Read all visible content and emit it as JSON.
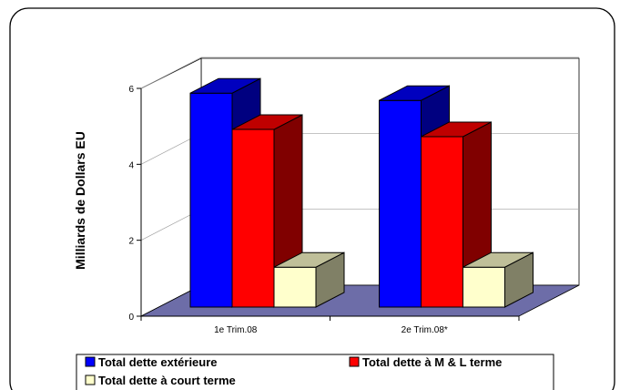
{
  "chart_data": {
    "type": "bar",
    "categories": [
      "1e Trim.08",
      "2e Trim.08*"
    ],
    "series": [
      {
        "name": "Total dette extérieure",
        "values": [
          5.9,
          5.7
        ],
        "color": "#0000FF"
      },
      {
        "name": "Total dette à M & L terme",
        "values": [
          4.9,
          4.7
        ],
        "color": "#FF0000"
      },
      {
        "name": "Total dette à court  terme",
        "values": [
          1.1,
          1.1
        ],
        "color": "#FFFFCC"
      }
    ],
    "ylabel": "Milliards de Dollars EU",
    "yticks": [
      "0",
      "2",
      "4",
      "6"
    ],
    "ylim": [
      0,
      6
    ],
    "grid": true,
    "view": "3d",
    "floor_color": "#6D6DA8",
    "legend_position": "bottom"
  }
}
